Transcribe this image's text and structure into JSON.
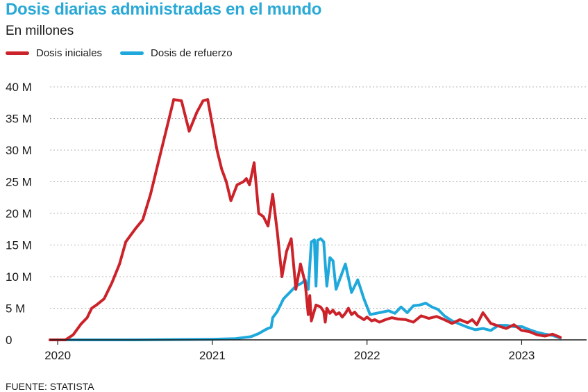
{
  "header": {
    "title": "Dosis diarias administradas en el mundo",
    "subtitle": "En millones"
  },
  "footer": {
    "source": "FUENTE: STATISTA"
  },
  "chart_data": {
    "type": "line",
    "title": "Dosis diarias administradas en el mundo",
    "subtitle": "En millones",
    "xlabel": "",
    "ylabel": "",
    "ylim": [
      0,
      40
    ],
    "yticks": [
      0,
      5,
      10,
      15,
      20,
      25,
      30,
      35,
      40
    ],
    "ytick_labels": [
      "0",
      "5 M",
      "10 M",
      "15 M",
      "20 M",
      "25 M",
      "30 M",
      "35 M",
      "40 M"
    ],
    "xlim": [
      2019.95,
      2023.42
    ],
    "xticks": [
      2020,
      2021,
      2022,
      2023
    ],
    "xtick_labels": [
      "2020",
      "2021",
      "2022",
      "2023"
    ],
    "grid": "horizontal-dotted",
    "legend": "top-left",
    "series": [
      {
        "name": "Dosis iniciales",
        "color": "#cc2229",
        "x": [
          2019.95,
          2020.05,
          2020.1,
          2020.15,
          2020.19,
          2020.22,
          2020.25,
          2020.3,
          2020.35,
          2020.4,
          2020.44,
          2020.5,
          2020.55,
          2020.6,
          2020.65,
          2020.7,
          2020.75,
          2020.8,
          2020.85,
          2020.9,
          2020.94,
          2020.97,
          2021.0,
          2021.03,
          2021.06,
          2021.09,
          2021.12,
          2021.16,
          2021.2,
          2021.22,
          2021.24,
          2021.27,
          2021.3,
          2021.33,
          2021.36,
          2021.39,
          2021.42,
          2021.45,
          2021.48,
          2021.51,
          2021.54,
          2021.57,
          2021.6,
          2021.62,
          2021.63,
          2021.64,
          2021.67,
          2021.7,
          2021.72,
          2021.73,
          2021.74,
          2021.76,
          2021.78,
          2021.8,
          2021.82,
          2021.84,
          2021.86,
          2021.88,
          2021.9,
          2021.92,
          2021.94,
          2021.96,
          2021.98,
          2022.0,
          2022.03,
          2022.05,
          2022.08,
          2022.12,
          2022.16,
          2022.2,
          2022.25,
          2022.3,
          2022.35,
          2022.4,
          2022.45,
          2022.5,
          2022.55,
          2022.6,
          2022.65,
          2022.68,
          2022.71,
          2022.75,
          2022.8,
          2022.85,
          2022.9,
          2022.95,
          2023.0,
          2023.05,
          2023.1,
          2023.15,
          2023.2,
          2023.25
        ],
        "y": [
          0,
          0,
          0.8,
          2.5,
          3.5,
          5,
          5.5,
          6.5,
          9,
          12,
          15.5,
          17.5,
          19,
          23,
          28,
          33,
          38,
          37.8,
          33,
          36,
          37.8,
          38,
          34,
          30,
          27,
          25,
          22,
          24.5,
          25,
          25.5,
          24.5,
          28,
          20,
          19.5,
          18,
          23,
          17,
          10,
          14,
          16,
          8,
          12,
          9,
          4,
          7,
          3,
          5.5,
          5.2,
          4.5,
          2.8,
          5,
          4.2,
          4.7,
          4,
          4.3,
          3.6,
          4.2,
          5,
          4,
          4.4,
          3.8,
          3.5,
          3.2,
          3.6,
          3,
          3.2,
          2.8,
          3.2,
          3.5,
          3.3,
          3.2,
          2.8,
          3.8,
          3.4,
          3.7,
          3.2,
          2.6,
          3.2,
          2.7,
          3.2,
          2.4,
          4.3,
          2.6,
          2.2,
          1.8,
          2.4,
          1.5,
          1.3,
          0.8,
          0.6,
          0.9,
          0.4
        ]
      },
      {
        "name": "Dosis de refuerzo",
        "color": "#1fa8dc",
        "x": [
          2019.95,
          2020.5,
          2021.0,
          2021.15,
          2021.25,
          2021.3,
          2021.35,
          2021.38,
          2021.39,
          2021.42,
          2021.46,
          2021.5,
          2021.54,
          2021.58,
          2021.6,
          2021.62,
          2021.64,
          2021.66,
          2021.67,
          2021.68,
          2021.7,
          2021.72,
          2021.74,
          2021.76,
          2021.78,
          2021.8,
          2021.83,
          2021.86,
          2021.9,
          2021.94,
          2021.96,
          2021.98,
          2022.02,
          2022.06,
          2022.1,
          2022.14,
          2022.18,
          2022.22,
          2022.26,
          2022.3,
          2022.34,
          2022.38,
          2022.42,
          2022.46,
          2022.5,
          2022.55,
          2022.6,
          2022.65,
          2022.7,
          2022.75,
          2022.8,
          2022.85,
          2022.9,
          2022.95,
          2023.0,
          2023.05,
          2023.1,
          2023.15,
          2023.2,
          2023.25
        ],
        "y": [
          0,
          0,
          0.1,
          0.2,
          0.5,
          1,
          1.7,
          2,
          3.5,
          4.5,
          6.5,
          7.5,
          8.5,
          9,
          9.5,
          8,
          15.5,
          15.8,
          8.5,
          15.7,
          16,
          15.5,
          8.5,
          13,
          12.5,
          8,
          10,
          12,
          7.5,
          9.5,
          8,
          6.5,
          4,
          4.2,
          4.4,
          4.6,
          4.2,
          5.2,
          4.3,
          5.4,
          5.5,
          5.8,
          5.2,
          4.8,
          3.8,
          3,
          2.5,
          2,
          1.6,
          1.8,
          1.5,
          2.3,
          2.3,
          2.1,
          2.1,
          1.6,
          1.2,
          0.9,
          0.7,
          0.3
        ]
      }
    ]
  }
}
